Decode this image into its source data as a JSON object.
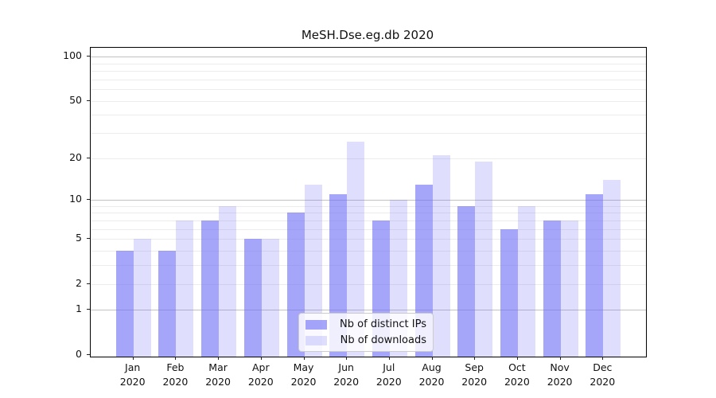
{
  "title": "MeSH.Dse.eg.db 2020",
  "chart_data": {
    "type": "bar",
    "title": "MeSH.Dse.eg.db 2020",
    "categories": [
      "Jan 2020",
      "Feb 2020",
      "Mar 2020",
      "Apr 2020",
      "May 2020",
      "Jun 2020",
      "Jul 2020",
      "Aug 2020",
      "Sep 2020",
      "Oct 2020",
      "Nov 2020",
      "Dec 2020"
    ],
    "series": [
      {
        "name": "Nb of distinct IPs",
        "color": "rgba(110,110,245,0.62)",
        "values": [
          4,
          4,
          7,
          5,
          8,
          11,
          7,
          13,
          9,
          6,
          7,
          11
        ]
      },
      {
        "name": "Nb of downloads",
        "color": "rgba(110,110,245,0.22)",
        "values": [
          5,
          7,
          9,
          5,
          13,
          26,
          10,
          21,
          19,
          9,
          7,
          14
        ]
      }
    ],
    "yscale": "log1p",
    "ylim": [
      0,
      116
    ],
    "yticks": [
      0,
      1,
      2,
      5,
      10,
      20,
      50,
      100
    ],
    "major_gridlines": [
      1,
      10,
      100
    ],
    "minor_gridlines": [
      2,
      3,
      4,
      5,
      6,
      7,
      8,
      9,
      20,
      30,
      40,
      50,
      60,
      70,
      80,
      90
    ],
    "grid": true,
    "legend_position": "lower center"
  },
  "colors": {
    "grid_major": "#c2c2c2",
    "grid_minor": "#ececec",
    "spine": "#000000",
    "tick": "#222222"
  }
}
